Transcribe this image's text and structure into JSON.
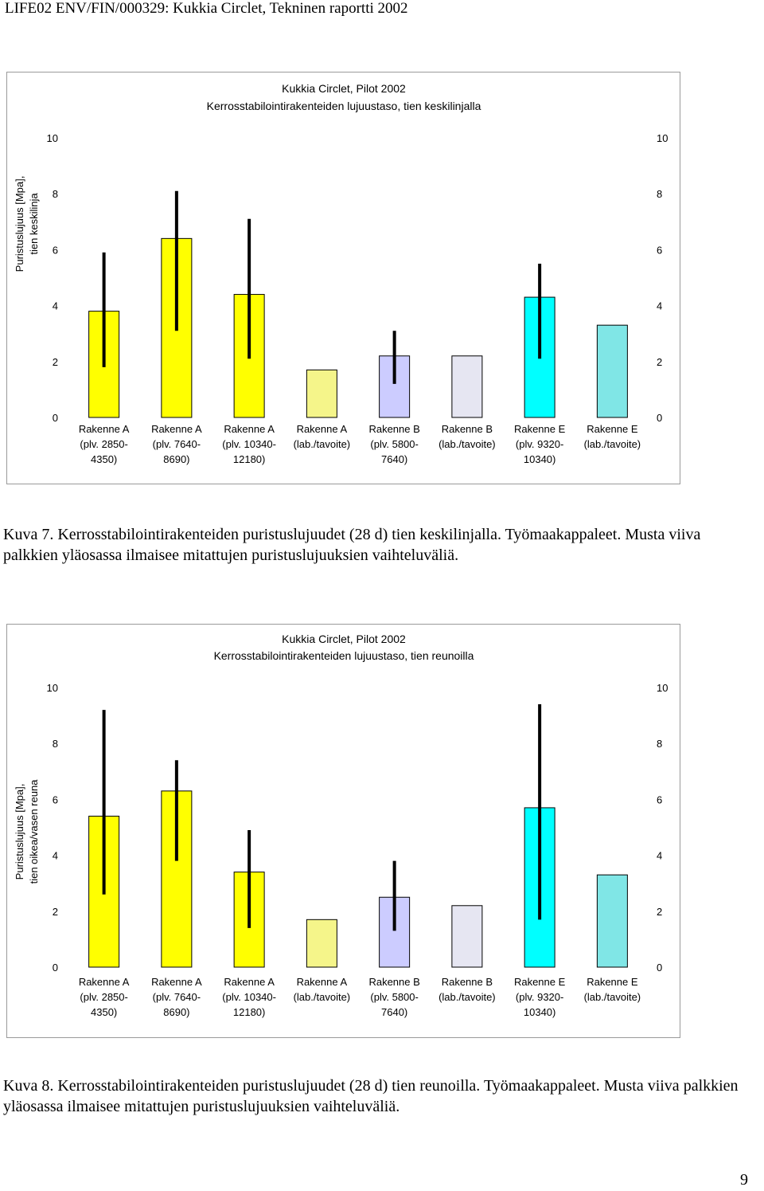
{
  "page": {
    "header": "LIFE02 ENV/FIN/000329: Kukkia Circlet, Tekninen raportti 2002",
    "page_number": "9"
  },
  "figures": [
    {
      "caption": "Kuva 7. Kerrosstabilointirakenteiden puristuslujuudet (28 d) tien keskilinjalla. Työmaakappaleet. Musta viiva palkkien yläosassa ilmaisee mitattujen puristuslujuuksien vaihteluväliä."
    },
    {
      "caption": "Kuva 8. Kerrosstabilointirakenteiden puristuslujuudet (28 d) tien reunoilla. Työmaakappaleet. Musta viiva palkkien yläosassa ilmaisee mitattujen puristuslujuuksien vaihteluväliä."
    }
  ],
  "chart_data": [
    {
      "type": "bar",
      "title": "Kukkia Circlet, Pilot 2002",
      "subtitle": "Kerrosstabilointirakenteiden lujuustaso, tien keskilinjalla",
      "ylabel": [
        "Puristuslujuus [Mpa],",
        "tien keskilinja"
      ],
      "ylim": [
        0,
        10
      ],
      "yticks": [
        "0",
        "2",
        "4",
        "6",
        "8",
        "10"
      ],
      "secondary_y_axis": true,
      "grid": false,
      "categories": [
        [
          "Rakenne A",
          "(plv. 2850-",
          "4350)"
        ],
        [
          "Rakenne A",
          "(plv. 7640-",
          "8690)"
        ],
        [
          "Rakenne A",
          "(plv. 10340-",
          "12180)"
        ],
        [
          "Rakenne A",
          "(lab./tavoite)"
        ],
        [
          "Rakenne B",
          "(plv. 5800-",
          "7640)"
        ],
        [
          "Rakenne B",
          "(lab./tavoite)"
        ],
        [
          "Rakenne E",
          "(plv. 9320-",
          "10340)"
        ],
        [
          "Rakenne E",
          "(lab./tavoite)"
        ]
      ],
      "values": [
        3.8,
        6.4,
        4.4,
        1.7,
        2.2,
        2.2,
        4.3,
        3.3
      ],
      "range_min": [
        1.8,
        3.1,
        2.1,
        null,
        1.2,
        null,
        2.1,
        null
      ],
      "range_max": [
        5.9,
        8.1,
        7.1,
        null,
        3.1,
        null,
        5.5,
        null
      ],
      "colors": [
        "#ffff00",
        "#ffff00",
        "#ffff00",
        "#f5f58a",
        "#ccccff",
        "#e6e6f2",
        "#00ffff",
        "#80e6e6"
      ]
    },
    {
      "type": "bar",
      "title": "Kukkia Circlet, Pilot 2002",
      "subtitle": "Kerrosstabilointirakenteiden lujuustaso, tien reunoilla",
      "ylabel": [
        "Puristuslujuus [Mpa],",
        "tien oikea/vasen reuna"
      ],
      "ylim": [
        0,
        10
      ],
      "yticks": [
        "0",
        "2",
        "4",
        "6",
        "8",
        "10"
      ],
      "secondary_y_axis": true,
      "grid": false,
      "categories": [
        [
          "Rakenne A",
          "(plv. 2850-",
          "4350)"
        ],
        [
          "Rakenne A",
          "(plv. 7640-",
          "8690)"
        ],
        [
          "Rakenne A",
          "(plv. 10340-",
          "12180)"
        ],
        [
          "Rakenne A",
          "(lab./tavoite)"
        ],
        [
          "Rakenne B",
          "(plv. 5800-",
          "7640)"
        ],
        [
          "Rakenne B",
          "(lab./tavoite)"
        ],
        [
          "Rakenne E",
          "(plv. 9320-",
          "10340)"
        ],
        [
          "Rakenne E",
          "(lab./tavoite)"
        ]
      ],
      "values": [
        5.4,
        6.3,
        3.4,
        1.7,
        2.5,
        2.2,
        5.7,
        3.3
      ],
      "range_min": [
        2.6,
        3.8,
        1.4,
        null,
        1.3,
        null,
        1.7,
        null
      ],
      "range_max": [
        9.2,
        7.4,
        4.9,
        null,
        3.8,
        null,
        9.4,
        null
      ],
      "colors": [
        "#ffff00",
        "#ffff00",
        "#ffff00",
        "#f5f58a",
        "#ccccff",
        "#e6e6f2",
        "#00ffff",
        "#80e6e6"
      ]
    }
  ]
}
